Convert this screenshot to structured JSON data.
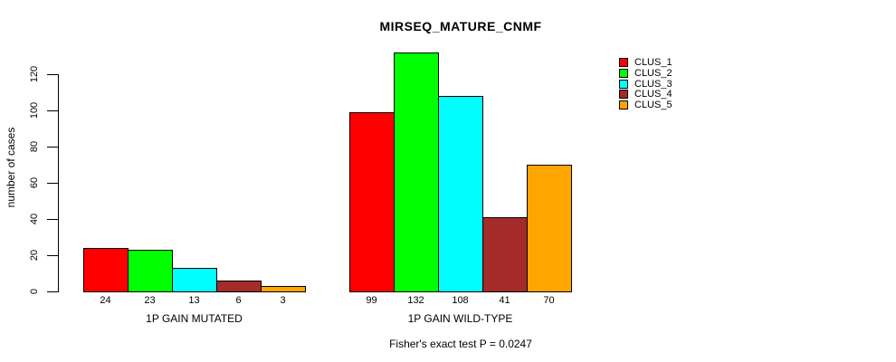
{
  "title": "MIRSEQ_MATURE_CNMF",
  "chart_data": {
    "type": "bar",
    "title": "MIRSEQ_MATURE_CNMF",
    "xlabel": "",
    "ylabel": "number of cases",
    "yticks": [
      0,
      20,
      40,
      60,
      80,
      100,
      120
    ],
    "ylim": [
      0,
      135
    ],
    "grid": false,
    "legend_position": "top-right",
    "series_labels": [
      "CLUS_1",
      "CLUS_2",
      "CLUS_3",
      "CLUS_4",
      "CLUS_5"
    ],
    "series_colors": [
      "#FF0000",
      "#00FF00",
      "#00FFFF",
      "#A52A2A",
      "#FFA500"
    ],
    "groups": [
      {
        "label": "1P GAIN MUTATED",
        "values": [
          24,
          23,
          13,
          6,
          3
        ]
      },
      {
        "label": "1P GAIN WILD-TYPE",
        "values": [
          99,
          132,
          108,
          41,
          70
        ]
      }
    ],
    "annotation": "Fisher's exact test P = 0.0247"
  }
}
